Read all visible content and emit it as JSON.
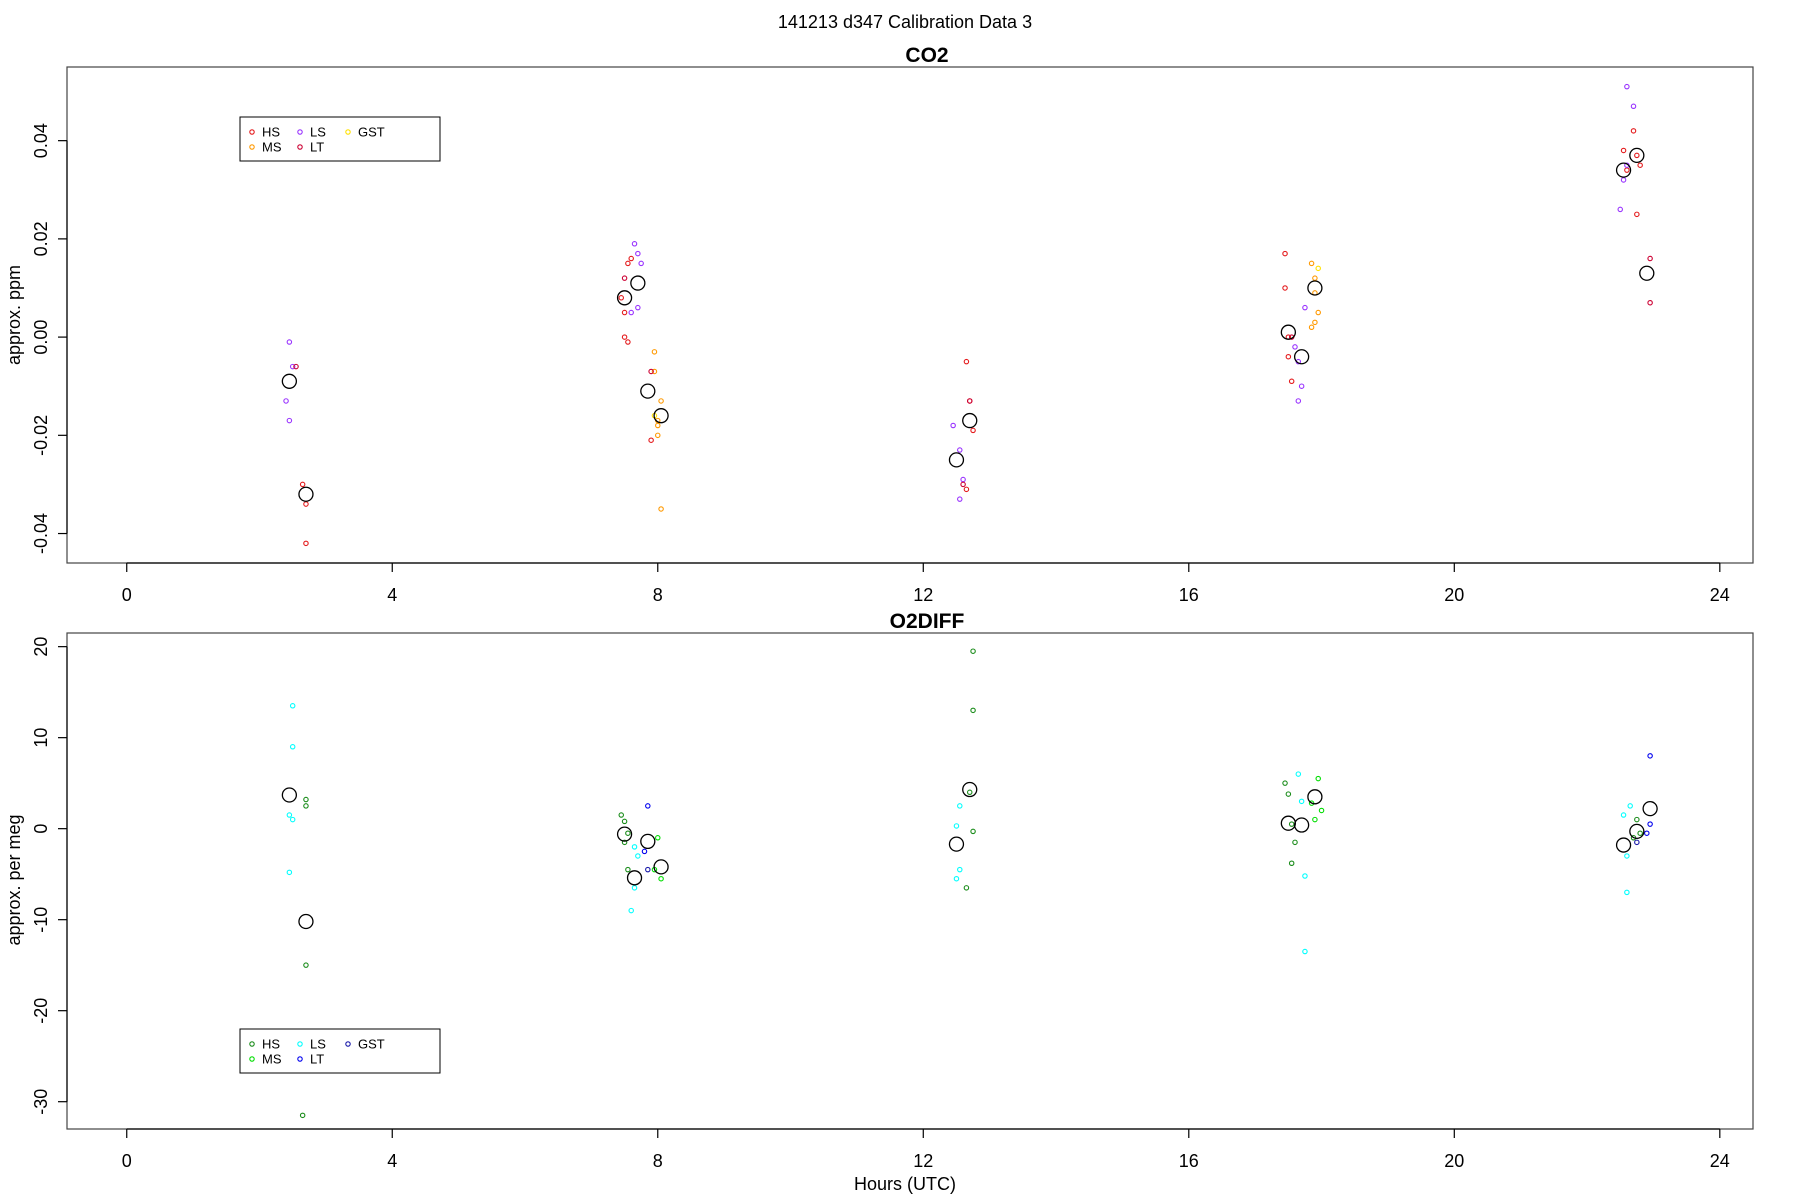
{
  "figure": {
    "suptitle": "141213   d347   Calibration Data 3",
    "xlabel": "Hours (UTC)"
  },
  "chart_data": [
    {
      "type": "scatter",
      "title": "CO2",
      "xlabel": "",
      "ylabel": "approx. ppm",
      "xlim": [
        -0.9,
        24.5
      ],
      "ylim": [
        -0.046,
        0.055
      ],
      "xticks": [
        0,
        4,
        8,
        12,
        16,
        20,
        24
      ],
      "yticks": [
        -0.04,
        -0.02,
        0.0,
        0.02,
        0.04
      ],
      "ytick_labels": [
        "-0.04",
        "-0.02",
        "0.00",
        "0.02",
        "0.04"
      ],
      "grid": false,
      "legend": {
        "placement": "top-left",
        "entries": [
          {
            "label": "HS",
            "color": "#e41a1c"
          },
          {
            "label": "MS",
            "color": "#ff9900"
          },
          {
            "label": "LS",
            "color": "#9933ff"
          },
          {
            "label": "LT",
            "color": "#cc0033"
          },
          {
            "label": "GST",
            "color": "#ffe100"
          }
        ]
      },
      "series": [
        {
          "name": "HS",
          "color": "#e41a1c",
          "points": [
            [
              2.65,
              -0.03
            ],
            [
              2.7,
              -0.034
            ],
            [
              2.7,
              -0.042
            ],
            [
              7.5,
              0.0
            ],
            [
              7.55,
              -0.001
            ],
            [
              7.5,
              0.005
            ],
            [
              7.55,
              0.015
            ],
            [
              7.6,
              0.016
            ],
            [
              7.45,
              0.008
            ],
            [
              7.9,
              -0.021
            ],
            [
              12.65,
              -0.005
            ],
            [
              12.7,
              -0.013
            ],
            [
              12.75,
              -0.019
            ],
            [
              12.65,
              -0.031
            ],
            [
              17.45,
              0.017
            ],
            [
              17.45,
              0.01
            ],
            [
              17.5,
              0.0
            ],
            [
              17.5,
              -0.004
            ],
            [
              17.55,
              -0.009
            ],
            [
              22.55,
              0.038
            ],
            [
              22.6,
              0.034
            ],
            [
              22.7,
              0.042
            ],
            [
              22.75,
              0.037
            ],
            [
              22.8,
              0.035
            ],
            [
              22.75,
              0.025
            ]
          ]
        },
        {
          "name": "MS",
          "color": "#ff9900",
          "points": [
            [
              7.95,
              -0.003
            ],
            [
              7.95,
              -0.007
            ],
            [
              8.05,
              -0.013
            ],
            [
              8.0,
              -0.017
            ],
            [
              8.0,
              -0.018
            ],
            [
              8.0,
              -0.02
            ],
            [
              8.05,
              -0.035
            ],
            [
              17.85,
              0.015
            ],
            [
              17.9,
              0.012
            ],
            [
              17.9,
              0.009
            ],
            [
              17.95,
              0.005
            ],
            [
              17.9,
              0.003
            ],
            [
              17.85,
              0.002
            ]
          ]
        },
        {
          "name": "LS",
          "color": "#9933ff",
          "points": [
            [
              2.45,
              -0.001
            ],
            [
              2.5,
              -0.006
            ],
            [
              2.4,
              -0.013
            ],
            [
              2.45,
              -0.017
            ],
            [
              7.65,
              0.019
            ],
            [
              7.7,
              0.017
            ],
            [
              7.75,
              0.015
            ],
            [
              7.7,
              0.006
            ],
            [
              7.6,
              0.005
            ],
            [
              12.45,
              -0.018
            ],
            [
              12.55,
              -0.023
            ],
            [
              12.6,
              -0.029
            ],
            [
              12.55,
              -0.033
            ],
            [
              17.6,
              -0.002
            ],
            [
              17.65,
              -0.005
            ],
            [
              17.7,
              -0.01
            ],
            [
              17.65,
              -0.013
            ],
            [
              17.75,
              0.006
            ],
            [
              22.6,
              0.051
            ],
            [
              22.7,
              0.047
            ],
            [
              22.5,
              0.026
            ],
            [
              22.6,
              0.035
            ],
            [
              22.55,
              0.032
            ]
          ]
        },
        {
          "name": "LT",
          "color": "#cc0033",
          "points": [
            [
              2.55,
              -0.006
            ],
            [
              7.5,
              0.012
            ],
            [
              7.9,
              -0.007
            ],
            [
              12.7,
              -0.013
            ],
            [
              12.6,
              -0.03
            ],
            [
              17.55,
              0.0
            ],
            [
              22.95,
              0.016
            ],
            [
              22.95,
              0.007
            ]
          ]
        },
        {
          "name": "GST",
          "color": "#ffe100",
          "points": [
            [
              7.95,
              -0.016
            ],
            [
              17.95,
              0.014
            ]
          ]
        },
        {
          "name": "mean",
          "color": "#000000",
          "big": true,
          "points": [
            [
              2.45,
              -0.009
            ],
            [
              2.7,
              -0.032
            ],
            [
              7.5,
              0.008
            ],
            [
              7.7,
              0.011
            ],
            [
              7.85,
              -0.011
            ],
            [
              8.05,
              -0.016
            ],
            [
              12.5,
              -0.025
            ],
            [
              12.7,
              -0.017
            ],
            [
              17.5,
              0.001
            ],
            [
              17.7,
              -0.004
            ],
            [
              17.9,
              0.01
            ],
            [
              22.55,
              0.034
            ],
            [
              22.75,
              0.037
            ],
            [
              22.9,
              0.013
            ]
          ]
        }
      ]
    },
    {
      "type": "scatter",
      "title": "O2DIFF",
      "xlabel": "Hours (UTC)",
      "ylabel": "approx. per meg",
      "xlim": [
        -0.9,
        24.5
      ],
      "ylim": [
        -33,
        21.5
      ],
      "xticks": [
        0,
        4,
        8,
        12,
        16,
        20,
        24
      ],
      "yticks": [
        -30,
        -20,
        -10,
        0,
        10,
        20
      ],
      "ytick_labels": [
        "-30",
        "-20",
        "-10",
        "0",
        "10",
        "20"
      ],
      "grid": false,
      "legend": {
        "placement": "bottom-left",
        "entries": [
          {
            "label": "HS",
            "color": "#1a8c1a"
          },
          {
            "label": "MS",
            "color": "#00dd00"
          },
          {
            "label": "LS",
            "color": "#00ffff"
          },
          {
            "label": "LT",
            "color": "#0000ee"
          },
          {
            "label": "GST",
            "color": "#1a1aaa"
          }
        ]
      },
      "series": [
        {
          "name": "HS",
          "color": "#1a8c1a",
          "points": [
            [
              2.7,
              3.2
            ],
            [
              2.7,
              2.5
            ],
            [
              2.7,
              -15.0
            ],
            [
              2.65,
              -31.5
            ],
            [
              7.45,
              1.5
            ],
            [
              7.5,
              0.8
            ],
            [
              7.55,
              -0.5
            ],
            [
              7.5,
              -1.5
            ],
            [
              7.55,
              -4.5
            ],
            [
              12.75,
              19.5
            ],
            [
              12.75,
              13.0
            ],
            [
              12.7,
              4.0
            ],
            [
              12.75,
              -0.3
            ],
            [
              12.65,
              -6.5
            ],
            [
              17.45,
              5.0
            ],
            [
              17.5,
              3.8
            ],
            [
              17.55,
              0.5
            ],
            [
              17.6,
              -1.5
            ],
            [
              17.55,
              -3.8
            ],
            [
              22.75,
              1.0
            ],
            [
              22.8,
              -0.5
            ],
            [
              22.7,
              -1.0
            ]
          ]
        },
        {
          "name": "MS",
          "color": "#00dd00",
          "points": [
            [
              8.0,
              -1.0
            ],
            [
              8.05,
              -5.5
            ],
            [
              7.95,
              -4.5
            ],
            [
              17.95,
              5.5
            ],
            [
              18.0,
              2.0
            ],
            [
              17.9,
              1.0
            ],
            [
              17.85,
              2.8
            ]
          ]
        },
        {
          "name": "LS",
          "color": "#00ffff",
          "points": [
            [
              2.5,
              13.5
            ],
            [
              2.5,
              9.0
            ],
            [
              2.45,
              1.5
            ],
            [
              2.5,
              1.0
            ],
            [
              2.45,
              -4.8
            ],
            [
              7.65,
              -2.0
            ],
            [
              7.7,
              -3.0
            ],
            [
              7.65,
              -6.5
            ],
            [
              7.6,
              -9.0
            ],
            [
              12.55,
              2.5
            ],
            [
              12.5,
              0.3
            ],
            [
              12.55,
              -4.5
            ],
            [
              12.5,
              -5.5
            ],
            [
              17.65,
              6.0
            ],
            [
              17.7,
              3.0
            ],
            [
              17.75,
              -5.2
            ],
            [
              17.75,
              -13.5
            ],
            [
              22.55,
              1.5
            ],
            [
              22.6,
              -3.0
            ],
            [
              22.6,
              -7.0
            ],
            [
              22.65,
              2.5
            ]
          ]
        },
        {
          "name": "LT",
          "color": "#0000ee",
          "points": [
            [
              7.85,
              2.5
            ],
            [
              7.8,
              -2.5
            ],
            [
              22.95,
              8.0
            ],
            [
              22.95,
              0.5
            ],
            [
              22.9,
              -0.5
            ]
          ]
        },
        {
          "name": "GST",
          "color": "#1a1aaa",
          "points": [
            [
              7.85,
              -4.5
            ],
            [
              22.75,
              -1.5
            ]
          ]
        },
        {
          "name": "mean",
          "color": "#000000",
          "big": true,
          "points": [
            [
              2.45,
              3.7
            ],
            [
              2.7,
              -10.2
            ],
            [
              7.5,
              -0.6
            ],
            [
              7.65,
              -5.4
            ],
            [
              7.85,
              -1.4
            ],
            [
              8.05,
              -4.2
            ],
            [
              12.5,
              -1.7
            ],
            [
              12.7,
              4.3
            ],
            [
              17.5,
              0.6
            ],
            [
              17.7,
              0.4
            ],
            [
              17.9,
              3.5
            ],
            [
              22.55,
              -1.8
            ],
            [
              22.75,
              -0.3
            ],
            [
              22.95,
              2.2
            ]
          ]
        }
      ]
    }
  ]
}
